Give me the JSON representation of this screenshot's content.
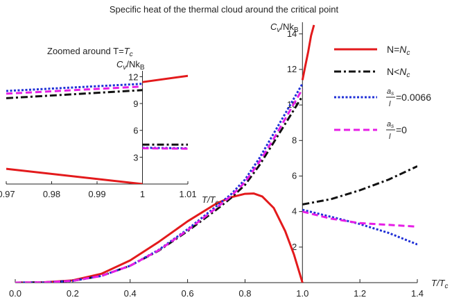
{
  "chart_data": [
    {
      "id": "main",
      "type": "line",
      "title": "Specific heat of the thermal cloud around the critical point",
      "xlabel": "T/Tc",
      "ylabel": "Cv/NkB",
      "xlim": [
        0.0,
        1.4
      ],
      "ylim": [
        0,
        14.5
      ],
      "xticks": [
        0.0,
        0.2,
        0.4,
        0.6,
        0.8,
        1.0,
        1.2,
        1.4
      ],
      "xtick_labels": [
        "0.0",
        "0.2",
        "0.4",
        "0.6",
        "0.8",
        "1.0",
        "1.2",
        "1.4"
      ],
      "yticks": [
        2,
        4,
        6,
        8,
        10,
        12,
        14
      ],
      "ytick_labels": [
        "2",
        "4",
        "6",
        "8",
        "10",
        "12",
        "14"
      ],
      "grid": false,
      "legend_position": "right",
      "series": [
        {
          "name": "N=Nc",
          "color": "#e31a1c",
          "dash": "solid",
          "segments": [
            {
              "x": [
                0.0,
                0.1,
                0.2,
                0.3,
                0.4,
                0.5,
                0.6,
                0.7,
                0.75,
                0.8,
                0.83,
                0.86,
                0.9,
                0.94,
                0.97,
                1.0
              ],
              "y": [
                0.0,
                0.02,
                0.13,
                0.5,
                1.25,
                2.3,
                3.45,
                4.45,
                4.8,
                5.0,
                5.02,
                4.85,
                4.2,
                2.9,
                1.6,
                0.0
              ]
            },
            {
              "x": [
                1.0,
                1.01,
                1.02,
                1.03,
                1.04
              ],
              "y": [
                11.4,
                12.2,
                13.0,
                13.9,
                14.5
              ]
            }
          ]
        },
        {
          "name": "N<Nc",
          "color": "#111111",
          "dash": "dashdot",
          "segments": [
            {
              "x": [
                0.0,
                0.1,
                0.2,
                0.3,
                0.4,
                0.5,
                0.6,
                0.7,
                0.75,
                0.8,
                0.85,
                0.9,
                0.95,
                1.0
              ],
              "y": [
                0.0,
                0.01,
                0.1,
                0.38,
                0.95,
                1.8,
                2.9,
                4.1,
                4.75,
                5.5,
                6.6,
                7.9,
                9.2,
                10.5
              ]
            },
            {
              "x": [
                1.0,
                1.1,
                1.2,
                1.3,
                1.4
              ],
              "y": [
                4.4,
                4.7,
                5.2,
                5.8,
                6.55
              ]
            }
          ]
        },
        {
          "name": "as/l=0.0066",
          "color": "#1f2fd6",
          "dash": "dotted",
          "segments": [
            {
              "x": [
                0.0,
                0.1,
                0.2,
                0.3,
                0.4,
                0.5,
                0.6,
                0.7,
                0.75,
                0.8,
                0.85,
                0.9,
                0.95,
                1.0
              ],
              "y": [
                0.0,
                0.01,
                0.1,
                0.38,
                0.95,
                1.85,
                3.0,
                4.3,
                4.95,
                5.8,
                7.0,
                8.4,
                9.8,
                11.2
              ]
            },
            {
              "x": [
                1.0,
                1.1,
                1.2,
                1.3,
                1.4
              ],
              "y": [
                4.1,
                3.7,
                3.3,
                2.8,
                2.15
              ]
            }
          ]
        },
        {
          "name": "as/l=0",
          "color": "#e61ee6",
          "dash": "dashed",
          "segments": [
            {
              "x": [
                0.0,
                0.1,
                0.2,
                0.3,
                0.4,
                0.5,
                0.6,
                0.7,
                0.75,
                0.8,
                0.85,
                0.9,
                0.95,
                1.0
              ],
              "y": [
                0.0,
                0.01,
                0.1,
                0.38,
                0.95,
                1.82,
                2.95,
                4.2,
                4.85,
                5.65,
                6.8,
                8.1,
                9.5,
                10.9
              ]
            },
            {
              "x": [
                1.0,
                1.1,
                1.2,
                1.3,
                1.4
              ],
              "y": [
                4.0,
                3.6,
                3.35,
                3.25,
                3.15
              ]
            }
          ]
        }
      ]
    },
    {
      "id": "inset",
      "type": "line",
      "title": "Zoomed around T=Tc",
      "xlabel": "T/Tc",
      "ylabel": "Cv/NkB",
      "xlim": [
        0.97,
        1.01
      ],
      "ylim": [
        0,
        12.5
      ],
      "xticks": [
        0.97,
        0.98,
        0.99,
        1.0,
        1.01
      ],
      "xtick_labels": [
        "0.97",
        "0.98",
        "0.99",
        "1",
        "1.01"
      ],
      "yticks": [
        3,
        6,
        9,
        12
      ],
      "ytick_labels": [
        "3",
        "6",
        "9",
        "12"
      ],
      "series": [
        {
          "name": "N=Nc",
          "color": "#e31a1c",
          "dash": "solid",
          "segments": [
            {
              "x": [
                0.97,
                1.0
              ],
              "y": [
                1.7,
                0.0
              ]
            },
            {
              "x": [
                1.0,
                1.01
              ],
              "y": [
                11.4,
                12.1
              ]
            }
          ]
        },
        {
          "name": "N<Nc",
          "color": "#111111",
          "dash": "dashdot",
          "segments": [
            {
              "x": [
                0.97,
                1.0
              ],
              "y": [
                9.6,
                10.5
              ]
            },
            {
              "x": [
                1.0,
                1.01
              ],
              "y": [
                4.4,
                4.4
              ]
            }
          ]
        },
        {
          "name": "as/l=0.0066",
          "color": "#1f2fd6",
          "dash": "dotted",
          "segments": [
            {
              "x": [
                0.97,
                1.0
              ],
              "y": [
                10.4,
                11.2
              ]
            },
            {
              "x": [
                1.0,
                1.01
              ],
              "y": [
                4.05,
                4.0
              ]
            }
          ]
        },
        {
          "name": "as/l=0",
          "color": "#e61ee6",
          "dash": "dashed",
          "segments": [
            {
              "x": [
                0.97,
                1.0
              ],
              "y": [
                10.1,
                10.9
              ]
            },
            {
              "x": [
                1.0,
                1.01
              ],
              "y": [
                4.0,
                3.95
              ]
            }
          ]
        }
      ]
    }
  ],
  "legend": [
    {
      "pre": "N=",
      "sub_base": "N",
      "sub": "c",
      "post": "",
      "color": "#e31a1c",
      "dash": "solid"
    },
    {
      "pre": "N<",
      "sub_base": "N",
      "sub": "c",
      "post": "",
      "color": "#111111",
      "dash": "dashdot"
    },
    {
      "frac_num": "a",
      "frac_num_sub": "s",
      "frac_den": "l",
      "post": "=0.0066",
      "color": "#1f2fd6",
      "dash": "dotted"
    },
    {
      "frac_num": "a",
      "frac_num_sub": "s",
      "frac_den": "l",
      "post": "=0",
      "color": "#e61ee6",
      "dash": "dashed"
    }
  ]
}
